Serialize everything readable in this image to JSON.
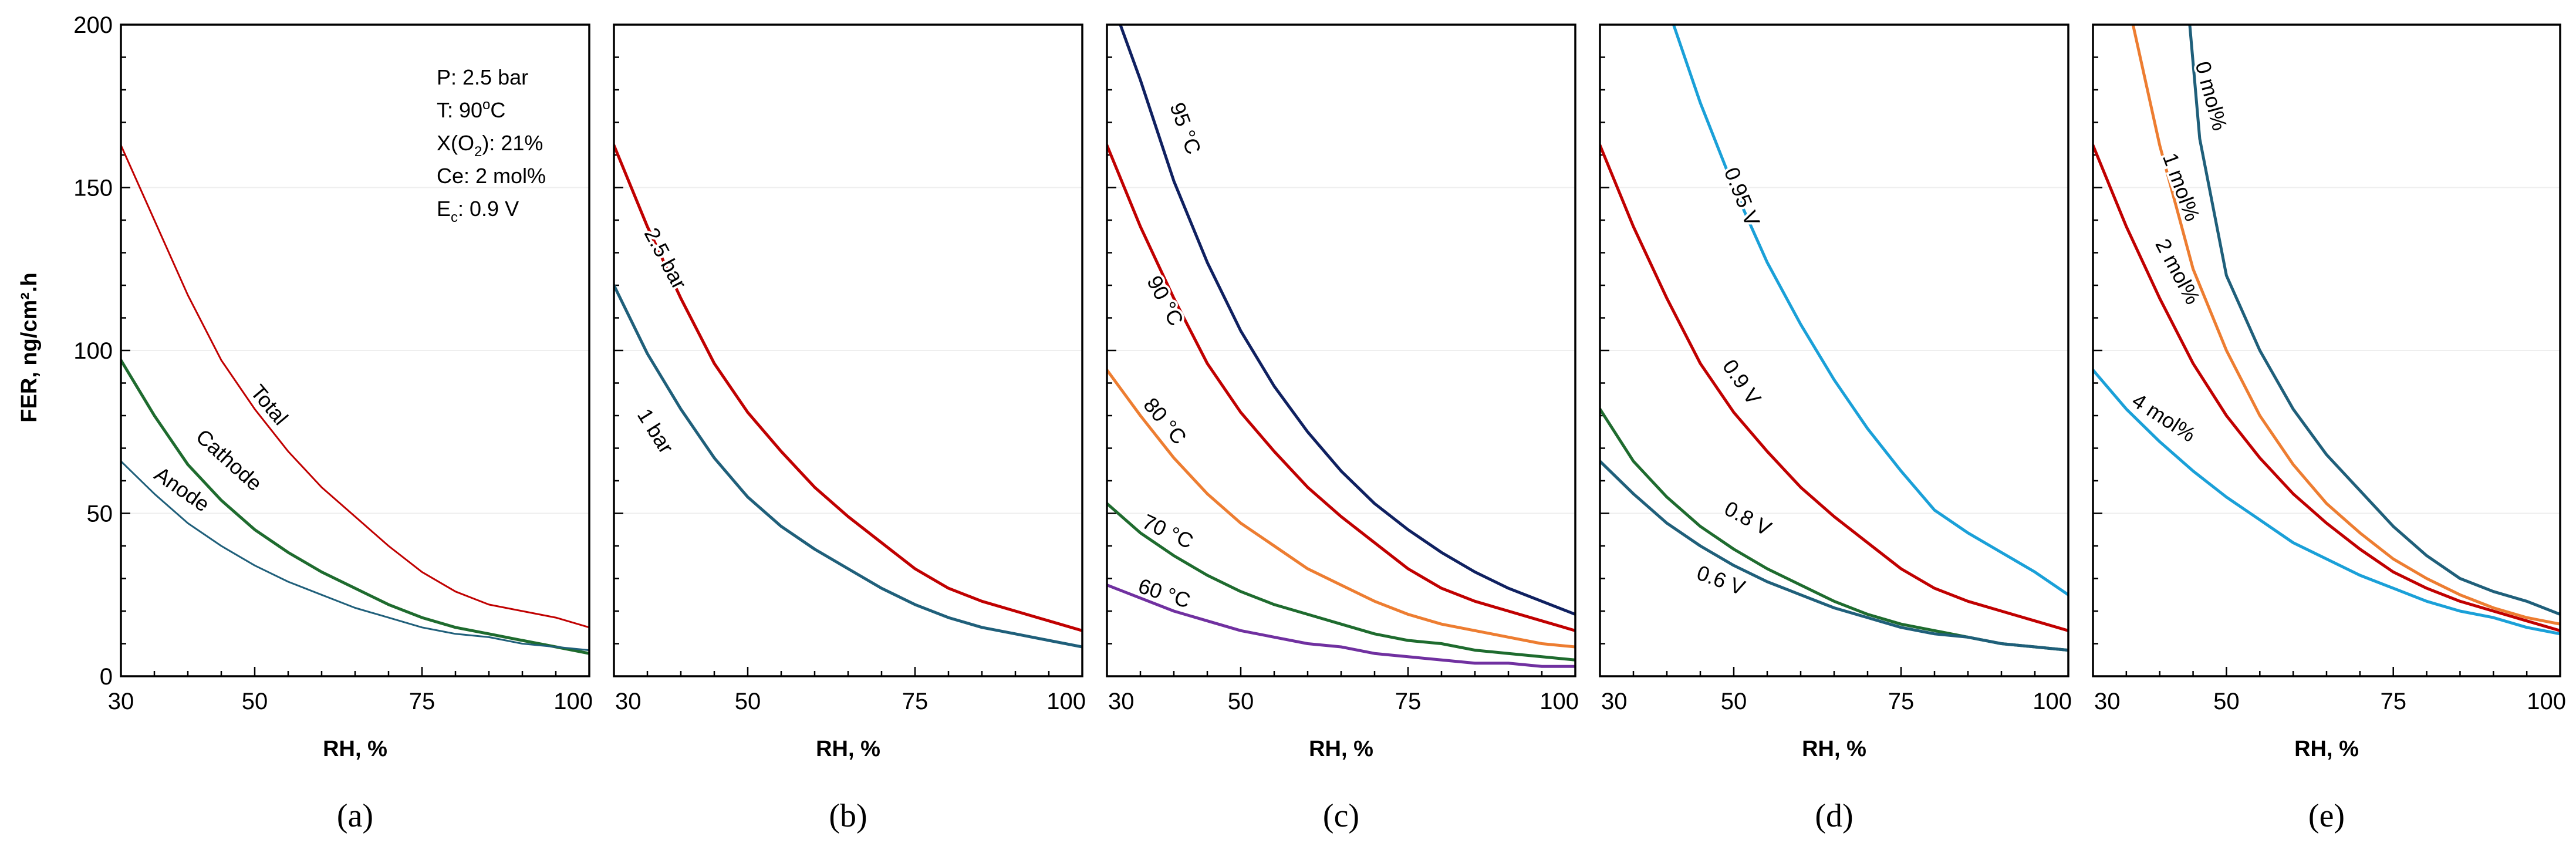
{
  "figure": {
    "ylabel": "FER, ng/cm².h",
    "info_box": [
      {
        "main": "P: 2.5 bar"
      },
      {
        "main": "T: 90",
        "sup": "o",
        "rest": "C"
      },
      {
        "main": "X(O",
        "sub": "2",
        "rest": "): 21%"
      },
      {
        "main": "Ce: 2 mol%"
      },
      {
        "main": "E",
        "sub": "c",
        "rest": ": 0.9 V"
      }
    ],
    "colors": {
      "red": "#c00000",
      "green": "#1e6b2e",
      "teal": "#1f5f7a",
      "navy": "#0f2060",
      "orange": "#ed7d31",
      "purple": "#7030a0",
      "lightblue": "#1aa0d8"
    }
  },
  "chart_data": [
    {
      "type": "line",
      "panel": "(a)",
      "xlabel": "RH, %",
      "ylabel": "FER, ng/cm².h",
      "xlim": [
        30,
        100
      ],
      "ylim": [
        0,
        200
      ],
      "xticks": [
        30,
        50,
        75,
        100
      ],
      "yticks": [
        0,
        50,
        100,
        150,
        200
      ],
      "series": [
        {
          "name": "Total",
          "color": "red",
          "width": 3,
          "x": [
            30,
            35,
            40,
            45,
            50,
            55,
            60,
            65,
            70,
            75,
            80,
            85,
            90,
            95,
            100
          ],
          "values": [
            163,
            140,
            117,
            97,
            82,
            69,
            58,
            49,
            40,
            32,
            26,
            22,
            20,
            18,
            15
          ]
        },
        {
          "name": "Cathode",
          "color": "green",
          "width": 5,
          "x": [
            30,
            35,
            40,
            45,
            50,
            55,
            60,
            65,
            70,
            75,
            80,
            85,
            90,
            95,
            100
          ],
          "values": [
            97,
            80,
            65,
            54,
            45,
            38,
            32,
            27,
            22,
            18,
            15,
            13,
            11,
            9,
            7
          ]
        },
        {
          "name": "Anode",
          "color": "teal",
          "width": 3,
          "x": [
            30,
            35,
            40,
            45,
            50,
            55,
            60,
            65,
            70,
            75,
            80,
            85,
            90,
            95,
            100
          ],
          "values": [
            66,
            56,
            47,
            40,
            34,
            29,
            25,
            21,
            18,
            15,
            13,
            12,
            10,
            9,
            8
          ]
        }
      ],
      "annotations": [
        {
          "text": "Total",
          "x": 52,
          "y": 83,
          "angle": 50
        },
        {
          "text": "Cathode",
          "x": 46,
          "y": 66,
          "angle": 42
        },
        {
          "text": "Anode",
          "x": 39,
          "y": 57,
          "angle": 35
        }
      ]
    },
    {
      "type": "line",
      "panel": "(b)",
      "xlabel": "RH, %",
      "xlim": [
        30,
        100
      ],
      "ylim": [
        0,
        200
      ],
      "xticks": [
        30,
        50,
        75,
        100
      ],
      "yticks": [
        0,
        50,
        100,
        150,
        200
      ],
      "series": [
        {
          "name": "2.5 bar",
          "color": "red",
          "width": 5,
          "x": [
            30,
            35,
            40,
            45,
            50,
            55,
            60,
            65,
            70,
            75,
            80,
            85,
            90,
            95,
            100
          ],
          "values": [
            163,
            138,
            116,
            96,
            81,
            69,
            58,
            49,
            41,
            33,
            27,
            23,
            20,
            17,
            14
          ]
        },
        {
          "name": "1 bar",
          "color": "teal",
          "width": 5,
          "x": [
            30,
            35,
            40,
            45,
            50,
            55,
            60,
            65,
            70,
            75,
            80,
            85,
            90,
            95,
            100
          ],
          "values": [
            120,
            99,
            82,
            67,
            55,
            46,
            39,
            33,
            27,
            22,
            18,
            15,
            13,
            11,
            9
          ]
        }
      ],
      "annotations": [
        {
          "text": "2.5 bar",
          "x": 37.5,
          "y": 128,
          "angle": 62
        },
        {
          "text": "1 bar",
          "x": 36,
          "y": 75,
          "angle": 58
        }
      ]
    },
    {
      "type": "line",
      "panel": "(c)",
      "xlabel": "RH, %",
      "xlim": [
        30,
        100
      ],
      "ylim": [
        0,
        200
      ],
      "xticks": [
        30,
        50,
        75,
        100
      ],
      "yticks": [
        0,
        50,
        100,
        150,
        200
      ],
      "series": [
        {
          "name": "95 °C",
          "color": "navy",
          "width": 5,
          "x": [
            32,
            35,
            40,
            45,
            50,
            55,
            60,
            65,
            70,
            75,
            80,
            85,
            90,
            95,
            100
          ],
          "values": [
            200,
            183,
            152,
            127,
            106,
            89,
            75,
            63,
            53,
            45,
            38,
            32,
            27,
            23,
            19
          ]
        },
        {
          "name": "90 °C",
          "color": "red",
          "width": 5,
          "x": [
            30,
            35,
            40,
            45,
            50,
            55,
            60,
            65,
            70,
            75,
            80,
            85,
            90,
            95,
            100
          ],
          "values": [
            163,
            138,
            116,
            96,
            81,
            69,
            58,
            49,
            41,
            33,
            27,
            23,
            20,
            17,
            14
          ]
        },
        {
          "name": "80 °C",
          "color": "orange",
          "width": 5,
          "x": [
            30,
            35,
            40,
            45,
            50,
            55,
            60,
            65,
            70,
            75,
            80,
            85,
            90,
            95,
            100
          ],
          "values": [
            94,
            80,
            67,
            56,
            47,
            40,
            33,
            28,
            23,
            19,
            16,
            14,
            12,
            10,
            9
          ]
        },
        {
          "name": "70 °C",
          "color": "green",
          "width": 5,
          "x": [
            30,
            35,
            40,
            45,
            50,
            55,
            60,
            65,
            70,
            75,
            80,
            85,
            90,
            95,
            100
          ],
          "values": [
            53,
            44,
            37,
            31,
            26,
            22,
            19,
            16,
            13,
            11,
            10,
            8,
            7,
            6,
            5
          ]
        },
        {
          "name": "60 °C",
          "color": "purple",
          "width": 5,
          "x": [
            30,
            35,
            40,
            45,
            50,
            55,
            60,
            65,
            70,
            75,
            80,
            85,
            90,
            95,
            100
          ],
          "values": [
            28,
            24,
            20,
            17,
            14,
            12,
            10,
            9,
            7,
            6,
            5,
            4,
            4,
            3,
            3
          ]
        }
      ],
      "annotations": [
        {
          "text": "95 °C",
          "x": 41.5,
          "y": 168,
          "angle": 70
        },
        {
          "text": "90 °C",
          "x": 38.5,
          "y": 115,
          "angle": 62
        },
        {
          "text": "80 °C",
          "x": 38.5,
          "y": 78,
          "angle": 50
        },
        {
          "text": "70 °C",
          "x": 39,
          "y": 44,
          "angle": 25
        },
        {
          "text": "60 °C",
          "x": 38.5,
          "y": 25,
          "angle": 18
        }
      ]
    },
    {
      "type": "line",
      "panel": "(d)",
      "xlabel": "RH, %",
      "xlim": [
        30,
        100
      ],
      "ylim": [
        0,
        200
      ],
      "xticks": [
        30,
        50,
        75,
        100
      ],
      "yticks": [
        0,
        50,
        100,
        150,
        200
      ],
      "series": [
        {
          "name": "0.95 V",
          "color": "lightblue",
          "width": 5,
          "x": [
            41,
            45,
            50,
            55,
            60,
            65,
            70,
            75,
            80,
            85,
            90,
            95,
            100
          ],
          "values": [
            200,
            176,
            150,
            127,
            108,
            91,
            76,
            63,
            51,
            44,
            38,
            32,
            25
          ]
        },
        {
          "name": "0.9 V",
          "color": "red",
          "width": 5,
          "x": [
            30,
            35,
            40,
            45,
            50,
            55,
            60,
            65,
            70,
            75,
            80,
            85,
            90,
            95,
            100
          ],
          "values": [
            163,
            138,
            116,
            96,
            81,
            69,
            58,
            49,
            41,
            33,
            27,
            23,
            20,
            17,
            14
          ]
        },
        {
          "name": "0.8 V",
          "color": "green",
          "width": 5,
          "x": [
            30,
            35,
            40,
            45,
            50,
            55,
            60,
            65,
            70,
            75,
            80,
            85,
            90,
            95,
            100
          ],
          "values": [
            82,
            66,
            55,
            46,
            39,
            33,
            28,
            23,
            19,
            16,
            14,
            12,
            10,
            9,
            8
          ]
        },
        {
          "name": "0.6 V",
          "color": "teal",
          "width": 5,
          "x": [
            30,
            35,
            40,
            45,
            50,
            55,
            60,
            65,
            70,
            75,
            80,
            85,
            90,
            95,
            100
          ],
          "values": [
            66,
            56,
            47,
            40,
            34,
            29,
            25,
            21,
            18,
            15,
            13,
            12,
            10,
            9,
            8
          ]
        }
      ],
      "annotations": [
        {
          "text": "0.95 V",
          "x": 51,
          "y": 147,
          "angle": 68
        },
        {
          "text": "0.9 V",
          "x": 51,
          "y": 90,
          "angle": 55
        },
        {
          "text": "0.8 V",
          "x": 52,
          "y": 48,
          "angle": 28
        },
        {
          "text": "0.6 V",
          "x": 48,
          "y": 29,
          "angle": 20
        }
      ]
    },
    {
      "type": "line",
      "panel": "(e)",
      "xlabel": "RH, %",
      "xlim": [
        30,
        100
      ],
      "ylim": [
        0,
        200
      ],
      "xticks": [
        30,
        50,
        75,
        100
      ],
      "yticks": [
        0,
        50,
        100,
        150,
        200
      ],
      "series": [
        {
          "name": "0 mol%",
          "color": "teal",
          "width": 5,
          "x": [
            44.5,
            46,
            50,
            55,
            60,
            65,
            70,
            75,
            80,
            85,
            90,
            95,
            100
          ],
          "values": [
            200,
            165,
            123,
            100,
            82,
            68,
            57,
            46,
            37,
            30,
            26,
            23,
            19
          ]
        },
        {
          "name": "1 mol%",
          "color": "orange",
          "width": 5,
          "x": [
            36,
            40,
            45,
            50,
            55,
            60,
            65,
            70,
            75,
            80,
            85,
            90,
            95,
            100
          ],
          "values": [
            200,
            163,
            125,
            100,
            80,
            65,
            53,
            44,
            36,
            30,
            25,
            21,
            18,
            16
          ]
        },
        {
          "name": "2 mol%",
          "color": "red",
          "width": 5,
          "x": [
            30,
            35,
            40,
            45,
            50,
            55,
            60,
            65,
            70,
            75,
            80,
            85,
            90,
            95,
            100
          ],
          "values": [
            163,
            138,
            116,
            96,
            80,
            67,
            56,
            47,
            39,
            32,
            27,
            23,
            20,
            17,
            14
          ]
        },
        {
          "name": "4 mol%",
          "color": "lightblue",
          "width": 5,
          "x": [
            30,
            35,
            40,
            45,
            50,
            55,
            60,
            65,
            70,
            75,
            80,
            85,
            90,
            95,
            100
          ],
          "values": [
            94,
            82,
            72,
            63,
            55,
            48,
            41,
            36,
            31,
            27,
            23,
            20,
            18,
            15,
            13
          ]
        }
      ],
      "annotations": [
        {
          "text": "0 mol%",
          "x": 47.5,
          "y": 178,
          "angle": 75
        },
        {
          "text": "1 mol%",
          "x": 43,
          "y": 150,
          "angle": 70
        },
        {
          "text": "2 mol%",
          "x": 42.5,
          "y": 124,
          "angle": 62
        },
        {
          "text": "4 mol%",
          "x": 40.5,
          "y": 79,
          "angle": 33
        }
      ]
    }
  ]
}
